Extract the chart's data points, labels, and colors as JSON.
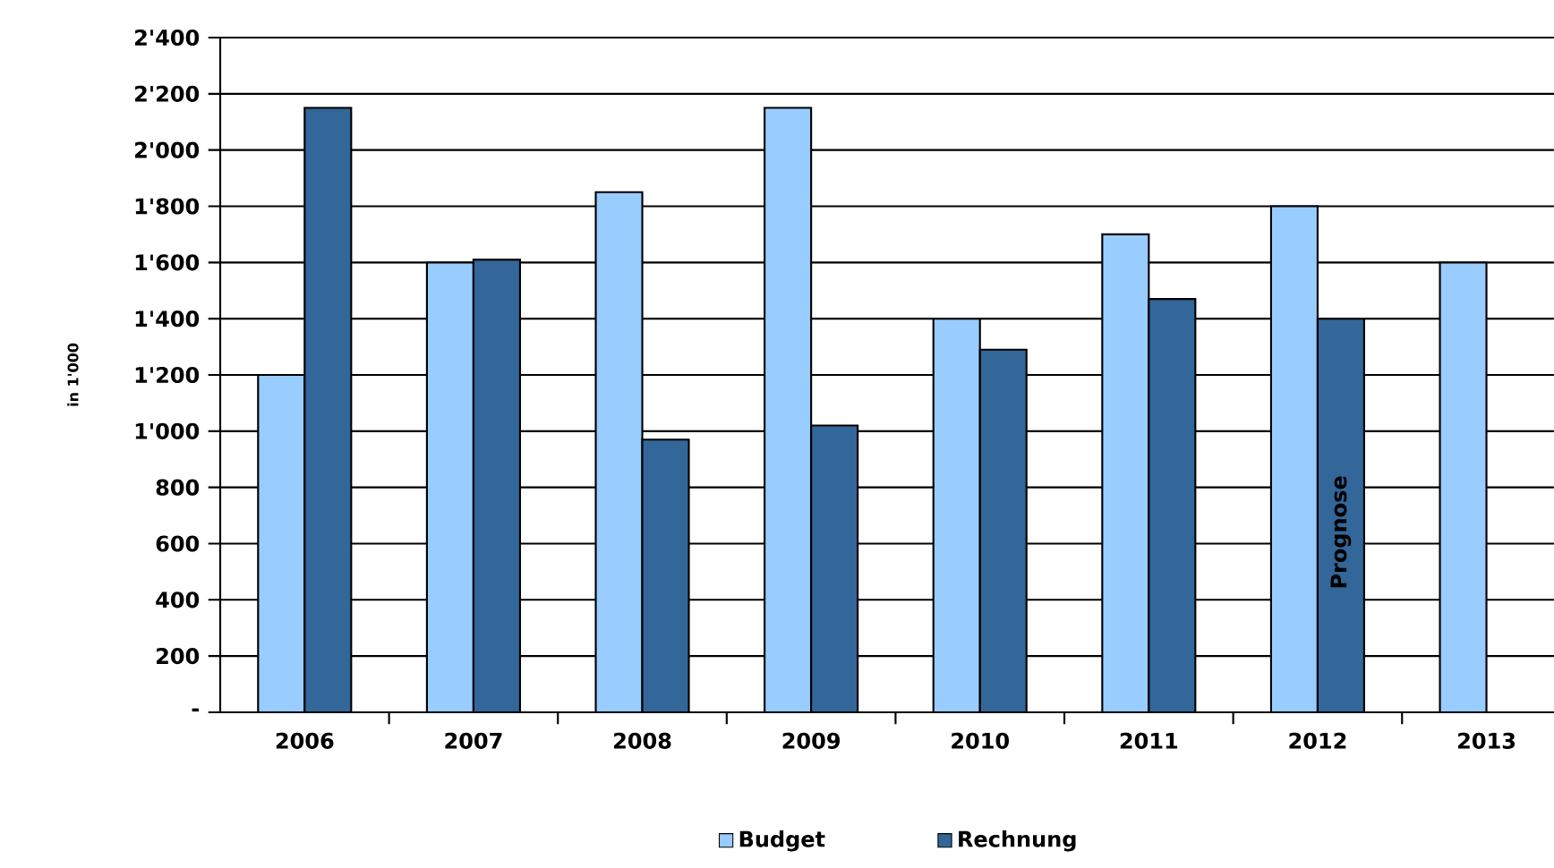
{
  "chart_data": {
    "type": "bar",
    "ylabel": "in 1'000",
    "categories": [
      "2006",
      "2007",
      "2008",
      "2009",
      "2010",
      "2011",
      "2012",
      "2013"
    ],
    "series": [
      {
        "name": "Budget",
        "color": "#99ccff",
        "values": [
          1200,
          1600,
          1850,
          2150,
          1400,
          1700,
          1800,
          1600
        ]
      },
      {
        "name": "Rechnung",
        "color": "#336699",
        "values": [
          2150,
          1610,
          970,
          1020,
          1290,
          1470,
          1400,
          null
        ]
      }
    ],
    "ylim": [
      0,
      2400
    ],
    "yticks": [
      {
        "value": 0,
        "label": "-"
      },
      {
        "value": 200,
        "label": "200"
      },
      {
        "value": 400,
        "label": "400"
      },
      {
        "value": 600,
        "label": "600"
      },
      {
        "value": 800,
        "label": "800"
      },
      {
        "value": 1000,
        "label": "1'000"
      },
      {
        "value": 1200,
        "label": "1'200"
      },
      {
        "value": 1400,
        "label": "1'400"
      },
      {
        "value": 1600,
        "label": "1'600"
      },
      {
        "value": 1800,
        "label": "1'800"
      },
      {
        "value": 2000,
        "label": "2'000"
      },
      {
        "value": 2200,
        "label": "2'200"
      },
      {
        "value": 2400,
        "label": "2'400"
      }
    ],
    "grid": "y",
    "legend": "bottom",
    "annotations": [
      {
        "text": "Prognose",
        "x": "2012",
        "y": 640
      }
    ]
  }
}
